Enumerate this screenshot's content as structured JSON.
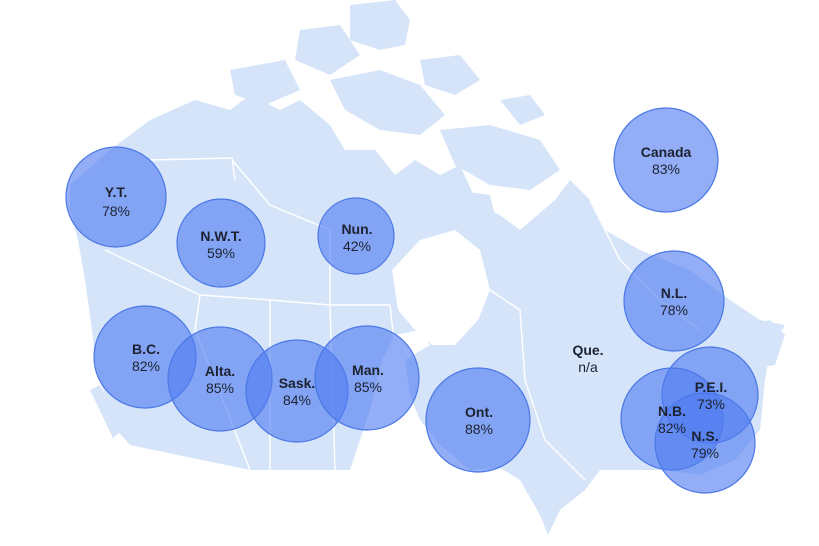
{
  "map": {
    "colors": {
      "land": "#d6e4fa",
      "bubble_fill": "#507df0",
      "bubble_stroke": "#4a78e6",
      "text": "#1c2230"
    },
    "regions": [
      {
        "id": "yt",
        "name": "Y.T.",
        "value_label": "78%",
        "value": 78
      },
      {
        "id": "nwt",
        "name": "N.W.T.",
        "value_label": "59%",
        "value": 59
      },
      {
        "id": "nun",
        "name": "Nun.",
        "value_label": "42%",
        "value": 42
      },
      {
        "id": "bc",
        "name": "B.C.",
        "value_label": "82%",
        "value": 82
      },
      {
        "id": "alta",
        "name": "Alta.",
        "value_label": "85%",
        "value": 85
      },
      {
        "id": "sask",
        "name": "Sask.",
        "value_label": "84%",
        "value": 84
      },
      {
        "id": "man",
        "name": "Man.",
        "value_label": "85%",
        "value": 85
      },
      {
        "id": "ont",
        "name": "Ont.",
        "value_label": "88%",
        "value": 88
      },
      {
        "id": "que",
        "name": "Que.",
        "value_label": "n/a",
        "value": null
      },
      {
        "id": "nl",
        "name": "N.L.",
        "value_label": "78%",
        "value": 78
      },
      {
        "id": "pei",
        "name": "P.E.I.",
        "value_label": "73%",
        "value": 73
      },
      {
        "id": "nb",
        "name": "N.B.",
        "value_label": "82%",
        "value": 82
      },
      {
        "id": "ns",
        "name": "N.S.",
        "value_label": "79%",
        "value": 79
      },
      {
        "id": "canada",
        "name": "Canada",
        "value_label": "83%",
        "value": 83
      }
    ]
  }
}
